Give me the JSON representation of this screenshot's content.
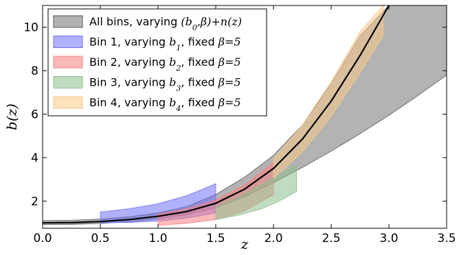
{
  "chart_data": {
    "type": "area",
    "xlabel": "z",
    "ylabel": "b(z)",
    "xlim": [
      0.0,
      3.5
    ],
    "ylim": [
      0.75,
      11.0
    ],
    "xticks": [
      "0.0",
      "0.5",
      "1.0",
      "1.5",
      "2.0",
      "2.5",
      "3.0",
      "3.5"
    ],
    "yticks": [
      "2",
      "4",
      "6",
      "8",
      "10"
    ],
    "legend_position": "top-left",
    "grid": false,
    "central_curve": {
      "color": "#000000",
      "x": [
        0.0,
        0.25,
        0.5,
        0.75,
        1.0,
        1.25,
        1.5,
        1.75,
        2.0,
        2.25,
        2.5,
        2.75,
        3.0
      ],
      "y": [
        1.0,
        1.01,
        1.06,
        1.15,
        1.3,
        1.52,
        1.9,
        2.55,
        3.5,
        4.85,
        6.6,
        8.7,
        11.0
      ]
    },
    "series": [
      {
        "name": "All bins, varying (b0,β)+n(z)",
        "legend_parts": [
          {
            "t": "All bins, varying ",
            "m": false
          },
          {
            "t": "(b",
            "m": true
          },
          {
            "t": "0",
            "m": true,
            "sub": true
          },
          {
            "t": ",β)+n(z)",
            "m": true
          }
        ],
        "color": "#999999",
        "x": [
          0.0,
          0.25,
          0.5,
          0.75,
          1.0,
          1.25,
          1.5,
          1.75,
          2.0,
          2.25,
          2.5,
          2.75,
          3.0,
          3.25,
          3.5
        ],
        "upper": [
          1.1,
          1.12,
          1.17,
          1.28,
          1.45,
          1.75,
          2.3,
          3.1,
          4.1,
          5.5,
          7.4,
          9.6,
          11.0,
          11.0,
          11.0
        ],
        "lower": [
          0.92,
          0.93,
          0.97,
          1.05,
          1.18,
          1.38,
          1.7,
          2.2,
          2.85,
          3.55,
          4.3,
          5.1,
          5.95,
          6.85,
          7.8
        ]
      },
      {
        "name": "Bin 1, varying b1, fixed β=5",
        "legend_parts": [
          {
            "t": "Bin 1, varying ",
            "m": false
          },
          {
            "t": "b",
            "m": true
          },
          {
            "t": "1",
            "m": true,
            "sub": true
          },
          {
            "t": ", fixed ",
            "m": false
          },
          {
            "t": "β=5",
            "m": true
          }
        ],
        "color": "#6f6ff8",
        "x": [
          0.5,
          0.75,
          1.0,
          1.25,
          1.5
        ],
        "upper": [
          1.5,
          1.65,
          1.88,
          2.25,
          2.8
        ],
        "lower": [
          1.0,
          1.02,
          1.08,
          1.22,
          1.45
        ]
      },
      {
        "name": "Bin 2, varying b2, fixed β=5",
        "legend_parts": [
          {
            "t": "Bin 2, varying ",
            "m": false
          },
          {
            "t": "b",
            "m": true
          },
          {
            "t": "2",
            "m": true,
            "sub": true
          },
          {
            "t": ", fixed ",
            "m": false
          },
          {
            "t": "β=5",
            "m": true
          }
        ],
        "color": "#f88080",
        "x": [
          1.0,
          1.25,
          1.5,
          1.75,
          2.0
        ],
        "upper": [
          1.4,
          1.65,
          2.05,
          2.75,
          3.8
        ],
        "lower": [
          0.88,
          0.98,
          1.15,
          1.55,
          2.3
        ]
      },
      {
        "name": "Bin 3, varying b3, fixed β=5",
        "legend_parts": [
          {
            "t": "Bin 3, varying ",
            "m": false
          },
          {
            "t": "b",
            "m": true
          },
          {
            "t": "3",
            "m": true,
            "sub": true
          },
          {
            "t": ", fixed ",
            "m": false
          },
          {
            "t": "β=5",
            "m": true
          }
        ],
        "color": "#8cc08c",
        "x": [
          1.5,
          1.7,
          1.9,
          2.05,
          2.2
        ],
        "upper": [
          1.75,
          2.2,
          2.8,
          3.2,
          3.7
        ],
        "lower": [
          1.15,
          1.35,
          1.65,
          2.0,
          2.45
        ]
      },
      {
        "name": "Bin 4, varying b4, fixed β=5",
        "legend_parts": [
          {
            "t": "Bin 4, varying ",
            "m": false
          },
          {
            "t": "b",
            "m": true
          },
          {
            "t": "4",
            "m": true,
            "sub": true
          },
          {
            "t": ", fixed ",
            "m": false
          },
          {
            "t": "β=5",
            "m": true
          }
        ],
        "color": "#f8c888",
        "x": [
          2.0,
          2.25,
          2.5,
          2.75,
          2.95
        ],
        "upper": [
          3.95,
          5.5,
          7.5,
          9.8,
          11.0
        ],
        "lower": [
          3.05,
          4.25,
          5.9,
          7.9,
          9.6
        ]
      }
    ]
  }
}
